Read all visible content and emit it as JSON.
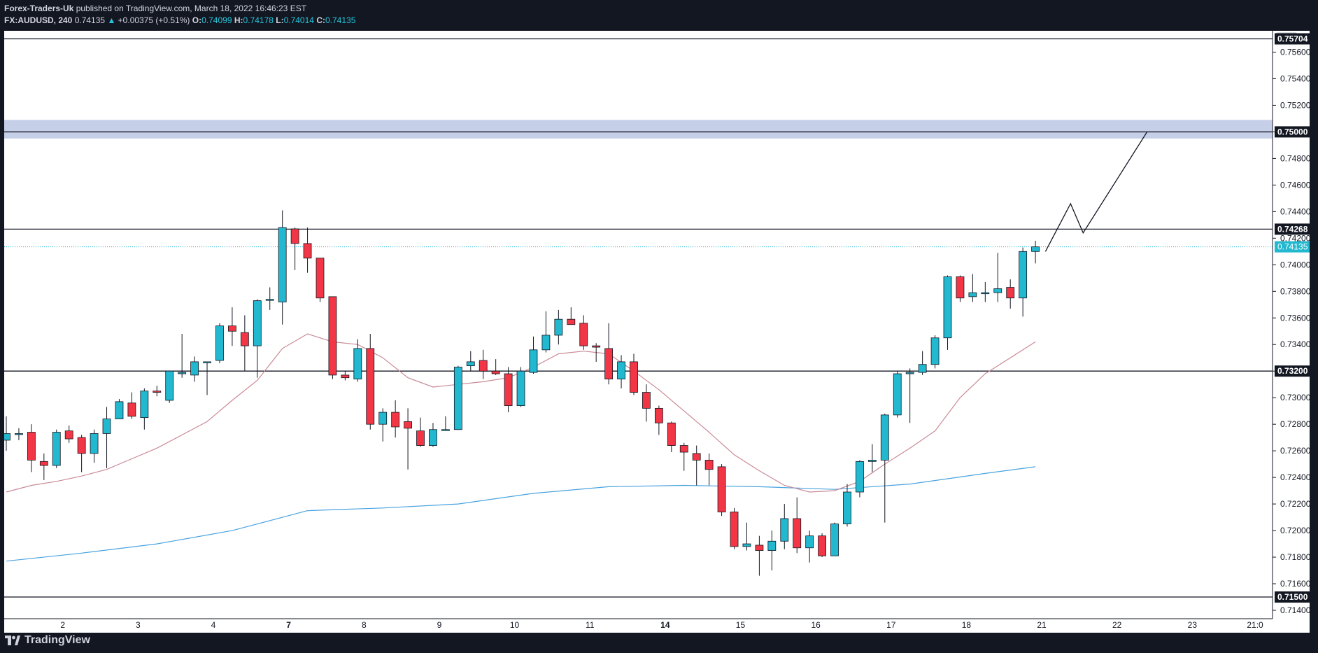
{
  "header": {
    "publisher": "Forex-Traders-Uk",
    "published_text": " published on TradingView.com, March 18, 2022 16:46:23 EST",
    "symbol": "FX:AUDUSD, 240",
    "last": "0.74135",
    "change": "+0.00375 (+0.51%)",
    "open_label": "O:",
    "open": "0.74099",
    "high_label": "H:",
    "high": "0.74178",
    "low_label": "L:",
    "low": "0.74014",
    "close_label": "C:",
    "close": "0.74135"
  },
  "footer": {
    "brand": "TradingView"
  },
  "colors": {
    "up": "#22b8cf",
    "down": "#f23645",
    "ma_fast": "#c98a95",
    "ma_slow": "#4aa3df",
    "zone": "#c6cfe8"
  },
  "chart_data": {
    "type": "candlestick",
    "title": "FX:AUDUSD, 240",
    "currency_label": "USD",
    "ylim": [
      0.714,
      0.7575
    ],
    "y_ticks": [
      0.714,
      0.716,
      0.718,
      0.72,
      0.722,
      0.724,
      0.726,
      0.728,
      0.73,
      0.732,
      0.734,
      0.736,
      0.738,
      0.74,
      0.742,
      0.744,
      0.746,
      0.748,
      0.75,
      0.752,
      0.754,
      0.756
    ],
    "y_tick_labels": [
      "0.71400",
      "0.71600",
      "0.71800",
      "0.72000",
      "0.72200",
      "0.72400",
      "0.72600",
      "0.72800",
      "0.73000",
      "0.73200",
      "0.73400",
      "0.73600",
      "0.73800",
      "0.74000",
      "0.74200",
      "0.74400",
      "0.74600",
      "0.74800",
      "0.75000",
      "0.75200",
      "0.75400",
      "0.75600"
    ],
    "x_tick_labels": [
      "2",
      "3",
      "4",
      "7",
      "8",
      "9",
      "10",
      "11",
      "14",
      "15",
      "16",
      "17",
      "18",
      "21",
      "22",
      "23",
      "21:0"
    ],
    "x_tick_bold": [
      "7",
      "14"
    ],
    "x_tick_index": [
      4.5,
      10.5,
      16.5,
      22.5,
      28.5,
      34.5,
      40.5,
      46.5,
      52.5,
      58.5,
      64.5,
      70.5,
      76.5,
      82.5,
      88.5,
      94.5,
      99.5
    ],
    "horizontal_levels": [
      {
        "value": 0.757,
        "label": "0.75704"
      },
      {
        "value": 0.75,
        "label": "0.75000"
      },
      {
        "value": 0.74268,
        "label": "0.74268"
      },
      {
        "value": 0.732,
        "label": "0.73200"
      },
      {
        "value": 0.715,
        "label": "0.71500"
      }
    ],
    "current_price": {
      "value": 0.74135,
      "label": "0.74135"
    },
    "zone": {
      "from": 0.7495,
      "to": 0.7509
    },
    "candles": [
      {
        "o": 0.7268,
        "h": 0.7286,
        "l": 0.726,
        "c": 0.7273
      },
      {
        "o": 0.7273,
        "h": 0.7277,
        "l": 0.7268,
        "c": 0.7273
      },
      {
        "o": 0.7274,
        "h": 0.728,
        "l": 0.7244,
        "c": 0.7253
      },
      {
        "o": 0.7252,
        "h": 0.7258,
        "l": 0.7238,
        "c": 0.7249
      },
      {
        "o": 0.7249,
        "h": 0.7276,
        "l": 0.7247,
        "c": 0.7274
      },
      {
        "o": 0.7275,
        "h": 0.7279,
        "l": 0.7266,
        "c": 0.7269
      },
      {
        "o": 0.727,
        "h": 0.7272,
        "l": 0.7244,
        "c": 0.7258
      },
      {
        "o": 0.7258,
        "h": 0.7276,
        "l": 0.7251,
        "c": 0.7273
      },
      {
        "o": 0.7273,
        "h": 0.7293,
        "l": 0.7247,
        "c": 0.7284
      },
      {
        "o": 0.7284,
        "h": 0.7299,
        "l": 0.7284,
        "c": 0.7297
      },
      {
        "o": 0.7296,
        "h": 0.7304,
        "l": 0.7284,
        "c": 0.7286
      },
      {
        "o": 0.7285,
        "h": 0.7307,
        "l": 0.7276,
        "c": 0.7305
      },
      {
        "o": 0.7305,
        "h": 0.7309,
        "l": 0.7301,
        "c": 0.7304
      },
      {
        "o": 0.7298,
        "h": 0.732,
        "l": 0.7296,
        "c": 0.732
      },
      {
        "o": 0.7318,
        "h": 0.7348,
        "l": 0.7315,
        "c": 0.7319
      },
      {
        "o": 0.7317,
        "h": 0.7331,
        "l": 0.7312,
        "c": 0.7327
      },
      {
        "o": 0.7327,
        "h": 0.7327,
        "l": 0.7302,
        "c": 0.7327
      },
      {
        "o": 0.7328,
        "h": 0.7356,
        "l": 0.7326,
        "c": 0.7354
      },
      {
        "o": 0.7354,
        "h": 0.7368,
        "l": 0.7339,
        "c": 0.735
      },
      {
        "o": 0.7349,
        "h": 0.7362,
        "l": 0.732,
        "c": 0.7339
      },
      {
        "o": 0.7339,
        "h": 0.7374,
        "l": 0.7315,
        "c": 0.7373
      },
      {
        "o": 0.7374,
        "h": 0.7383,
        "l": 0.7366,
        "c": 0.7374
      },
      {
        "o": 0.7372,
        "h": 0.7441,
        "l": 0.7355,
        "c": 0.7428
      },
      {
        "o": 0.7427,
        "h": 0.7428,
        "l": 0.7396,
        "c": 0.7416
      },
      {
        "o": 0.7416,
        "h": 0.7428,
        "l": 0.7394,
        "c": 0.7405
      },
      {
        "o": 0.7405,
        "h": 0.7405,
        "l": 0.7372,
        "c": 0.7375
      },
      {
        "o": 0.7376,
        "h": 0.7376,
        "l": 0.7314,
        "c": 0.7317
      },
      {
        "o": 0.7317,
        "h": 0.732,
        "l": 0.7313,
        "c": 0.7315
      },
      {
        "o": 0.7314,
        "h": 0.7344,
        "l": 0.7312,
        "c": 0.7337
      },
      {
        "o": 0.7337,
        "h": 0.7348,
        "l": 0.7276,
        "c": 0.728
      },
      {
        "o": 0.728,
        "h": 0.7292,
        "l": 0.7267,
        "c": 0.7289
      },
      {
        "o": 0.7289,
        "h": 0.7298,
        "l": 0.727,
        "c": 0.7278
      },
      {
        "o": 0.7282,
        "h": 0.7292,
        "l": 0.7246,
        "c": 0.7277
      },
      {
        "o": 0.7275,
        "h": 0.7285,
        "l": 0.7263,
        "c": 0.7264
      },
      {
        "o": 0.7264,
        "h": 0.7281,
        "l": 0.7263,
        "c": 0.7276
      },
      {
        "o": 0.7276,
        "h": 0.7286,
        "l": 0.7276,
        "c": 0.7276
      },
      {
        "o": 0.7276,
        "h": 0.7324,
        "l": 0.7276,
        "c": 0.7323
      },
      {
        "o": 0.7324,
        "h": 0.7335,
        "l": 0.732,
        "c": 0.7327
      },
      {
        "o": 0.7328,
        "h": 0.7336,
        "l": 0.7314,
        "c": 0.732
      },
      {
        "o": 0.732,
        "h": 0.7329,
        "l": 0.7317,
        "c": 0.7318
      },
      {
        "o": 0.7318,
        "h": 0.7323,
        "l": 0.7289,
        "c": 0.7294
      },
      {
        "o": 0.7294,
        "h": 0.7323,
        "l": 0.7293,
        "c": 0.732
      },
      {
        "o": 0.7319,
        "h": 0.7346,
        "l": 0.7318,
        "c": 0.7336
      },
      {
        "o": 0.7336,
        "h": 0.7365,
        "l": 0.7334,
        "c": 0.7347
      },
      {
        "o": 0.7347,
        "h": 0.7366,
        "l": 0.734,
        "c": 0.7359
      },
      {
        "o": 0.7359,
        "h": 0.7368,
        "l": 0.7356,
        "c": 0.7355
      },
      {
        "o": 0.7356,
        "h": 0.7362,
        "l": 0.7336,
        "c": 0.7339
      },
      {
        "o": 0.7339,
        "h": 0.7341,
        "l": 0.7327,
        "c": 0.7338
      },
      {
        "o": 0.7337,
        "h": 0.7356,
        "l": 0.731,
        "c": 0.7314
      },
      {
        "o": 0.7314,
        "h": 0.7332,
        "l": 0.7307,
        "c": 0.7327
      },
      {
        "o": 0.7327,
        "h": 0.7333,
        "l": 0.7302,
        "c": 0.7304
      },
      {
        "o": 0.7304,
        "h": 0.731,
        "l": 0.7282,
        "c": 0.7292
      },
      {
        "o": 0.7292,
        "h": 0.7294,
        "l": 0.7272,
        "c": 0.7281
      },
      {
        "o": 0.7281,
        "h": 0.7282,
        "l": 0.7259,
        "c": 0.7264
      },
      {
        "o": 0.7264,
        "h": 0.7266,
        "l": 0.7245,
        "c": 0.7259
      },
      {
        "o": 0.7258,
        "h": 0.7264,
        "l": 0.7234,
        "c": 0.7253
      },
      {
        "o": 0.7253,
        "h": 0.7258,
        "l": 0.7234,
        "c": 0.7246
      },
      {
        "o": 0.7248,
        "h": 0.725,
        "l": 0.7211,
        "c": 0.7214
      },
      {
        "o": 0.7214,
        "h": 0.7217,
        "l": 0.7186,
        "c": 0.7188
      },
      {
        "o": 0.7188,
        "h": 0.7206,
        "l": 0.7185,
        "c": 0.719
      },
      {
        "o": 0.7189,
        "h": 0.7196,
        "l": 0.7166,
        "c": 0.7185
      },
      {
        "o": 0.7185,
        "h": 0.72,
        "l": 0.717,
        "c": 0.7192
      },
      {
        "o": 0.7192,
        "h": 0.722,
        "l": 0.7186,
        "c": 0.7209
      },
      {
        "o": 0.7209,
        "h": 0.7225,
        "l": 0.7183,
        "c": 0.7187
      },
      {
        "o": 0.7187,
        "h": 0.72,
        "l": 0.7176,
        "c": 0.7196
      },
      {
        "o": 0.7196,
        "h": 0.7198,
        "l": 0.718,
        "c": 0.7181
      },
      {
        "o": 0.7181,
        "h": 0.7206,
        "l": 0.7181,
        "c": 0.7205
      },
      {
        "o": 0.7205,
        "h": 0.7235,
        "l": 0.7203,
        "c": 0.7229
      },
      {
        "o": 0.7229,
        "h": 0.7253,
        "l": 0.7225,
        "c": 0.7252
      },
      {
        "o": 0.7252,
        "h": 0.7265,
        "l": 0.7244,
        "c": 0.7253
      },
      {
        "o": 0.7253,
        "h": 0.7288,
        "l": 0.7206,
        "c": 0.7287
      },
      {
        "o": 0.7287,
        "h": 0.732,
        "l": 0.7285,
        "c": 0.7318
      },
      {
        "o": 0.7318,
        "h": 0.7322,
        "l": 0.7281,
        "c": 0.7319
      },
      {
        "o": 0.7319,
        "h": 0.7335,
        "l": 0.7317,
        "c": 0.7325
      },
      {
        "o": 0.7325,
        "h": 0.7347,
        "l": 0.7322,
        "c": 0.7345
      },
      {
        "o": 0.7345,
        "h": 0.7392,
        "l": 0.7336,
        "c": 0.7391
      },
      {
        "o": 0.7391,
        "h": 0.7392,
        "l": 0.7372,
        "c": 0.7375
      },
      {
        "o": 0.7376,
        "h": 0.7393,
        "l": 0.7372,
        "c": 0.7379
      },
      {
        "o": 0.7379,
        "h": 0.7387,
        "l": 0.7372,
        "c": 0.7379
      },
      {
        "o": 0.7379,
        "h": 0.7409,
        "l": 0.7372,
        "c": 0.7382
      },
      {
        "o": 0.7383,
        "h": 0.7389,
        "l": 0.7367,
        "c": 0.7375
      },
      {
        "o": 0.7375,
        "h": 0.7413,
        "l": 0.7361,
        "c": 0.741
      },
      {
        "o": 0.741,
        "h": 0.7418,
        "l": 0.7401,
        "c": 0.74135
      }
    ],
    "ma_fast": [
      [
        0,
        0.7229
      ],
      [
        2,
        0.7234
      ],
      [
        4,
        0.7237
      ],
      [
        6,
        0.7241
      ],
      [
        8,
        0.7246
      ],
      [
        10,
        0.7254
      ],
      [
        12,
        0.7262
      ],
      [
        14,
        0.7272
      ],
      [
        16,
        0.7282
      ],
      [
        18,
        0.7298
      ],
      [
        20,
        0.7313
      ],
      [
        22,
        0.7337
      ],
      [
        24,
        0.7348
      ],
      [
        26,
        0.7342
      ],
      [
        28,
        0.734
      ],
      [
        30,
        0.733
      ],
      [
        32,
        0.7315
      ],
      [
        34,
        0.7308
      ],
      [
        36,
        0.731
      ],
      [
        38,
        0.7312
      ],
      [
        40,
        0.7315
      ],
      [
        42,
        0.7323
      ],
      [
        44,
        0.7333
      ],
      [
        46,
        0.7335
      ],
      [
        48,
        0.7333
      ],
      [
        50,
        0.732
      ],
      [
        52,
        0.7306
      ],
      [
        54,
        0.729
      ],
      [
        56,
        0.7274
      ],
      [
        58,
        0.7257
      ],
      [
        60,
        0.7245
      ],
      [
        62,
        0.7234
      ],
      [
        64,
        0.7229
      ],
      [
        66,
        0.723
      ],
      [
        68,
        0.7237
      ],
      [
        70,
        0.725
      ],
      [
        72,
        0.7262
      ],
      [
        74,
        0.7275
      ],
      [
        76,
        0.73
      ],
      [
        78,
        0.7318
      ],
      [
        80,
        0.733
      ],
      [
        82,
        0.7342
      ]
    ],
    "ma_slow": [
      [
        0,
        0.7177
      ],
      [
        6,
        0.7183
      ],
      [
        12,
        0.719
      ],
      [
        18,
        0.72
      ],
      [
        24,
        0.7215
      ],
      [
        30,
        0.7217
      ],
      [
        36,
        0.722
      ],
      [
        42,
        0.7228
      ],
      [
        48,
        0.7233
      ],
      [
        54,
        0.7234
      ],
      [
        60,
        0.7233
      ],
      [
        66,
        0.7231
      ],
      [
        72,
        0.7235
      ],
      [
        78,
        0.7243
      ],
      [
        82,
        0.7248
      ]
    ],
    "projection": [
      [
        82.8,
        0.741
      ],
      [
        84.8,
        0.7446
      ],
      [
        85.8,
        0.7424
      ],
      [
        90.9,
        0.75
      ]
    ]
  }
}
